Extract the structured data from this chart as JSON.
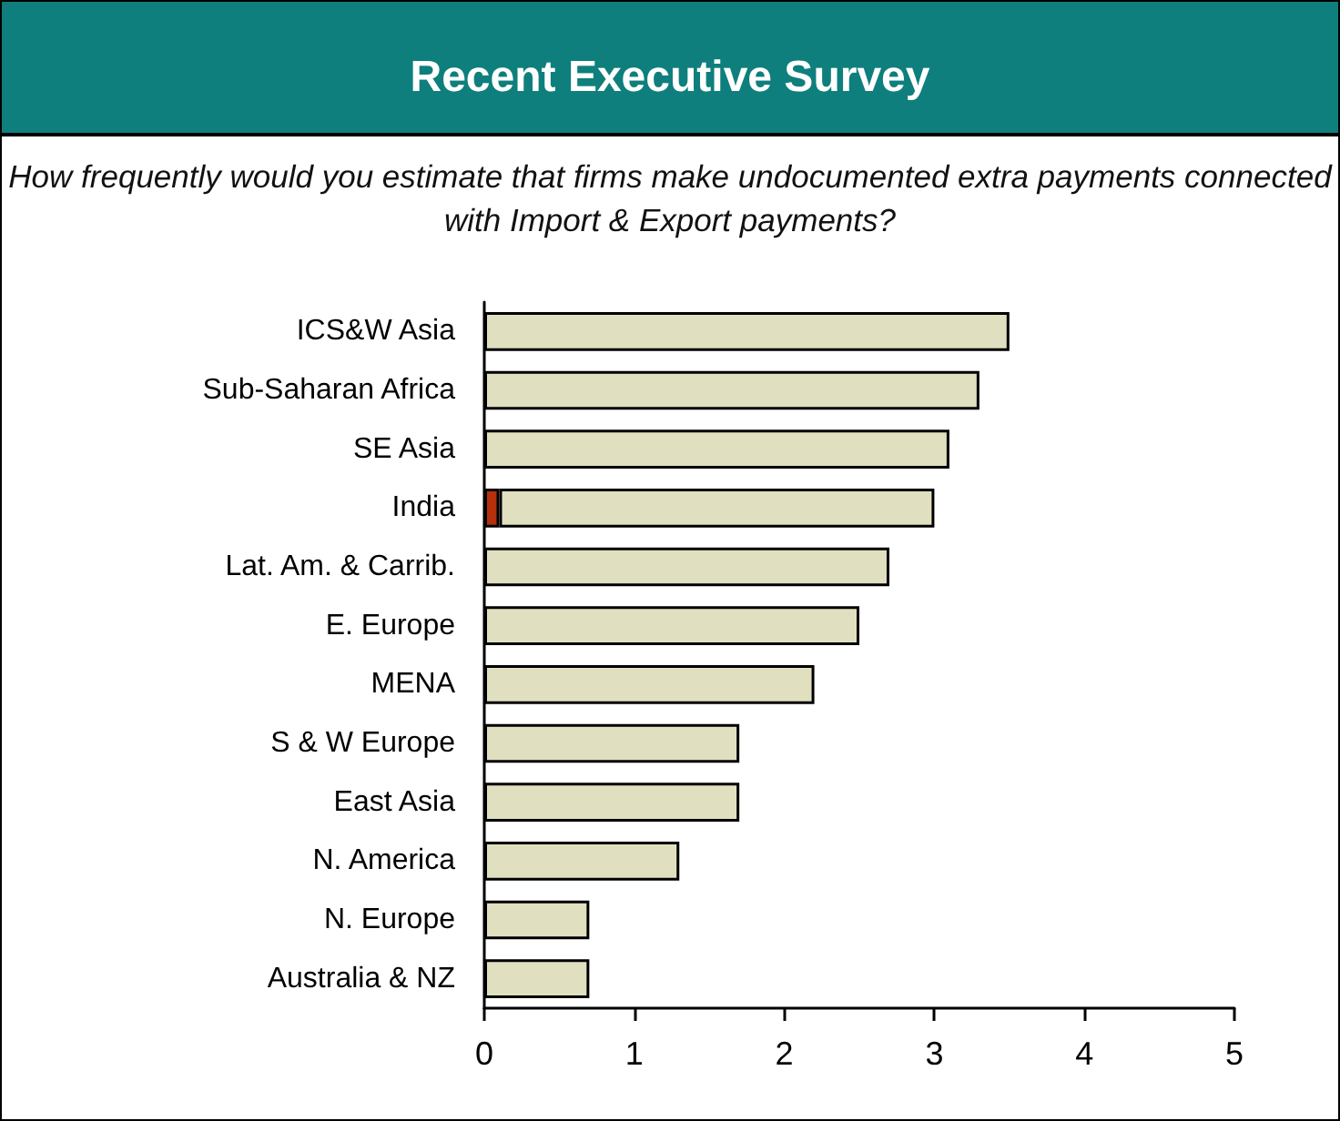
{
  "chart_data": {
    "type": "bar",
    "title": "Recent Executive Survey",
    "subtitle": "How frequently would you estimate that firms make undocumented extra payments connected with Import & Export payments?",
    "categories": [
      "ICS&W Asia",
      "Sub-Saharan Africa",
      "SE Asia",
      "India",
      "Lat. Am. & Carrib.",
      "E. Europe",
      "MENA",
      "S & W Europe",
      "East Asia",
      "N. America",
      "N. Europe",
      "Australia & NZ"
    ],
    "orientation": "horizontal",
    "stacked": true,
    "series": [
      {
        "color": "#b5300b",
        "values": [
          null,
          null,
          null,
          0.1,
          null,
          null,
          null,
          null,
          null,
          null,
          null,
          null
        ]
      },
      {
        "color": "#e0dfc0",
        "values": [
          3.5,
          3.3,
          3.1,
          2.9,
          2.7,
          2.5,
          2.2,
          1.7,
          1.7,
          1.3,
          0.7,
          0.7
        ]
      }
    ],
    "xlim": [
      0,
      5
    ],
    "xticks": [
      0,
      1,
      2,
      3,
      4,
      5
    ],
    "grid": false
  }
}
